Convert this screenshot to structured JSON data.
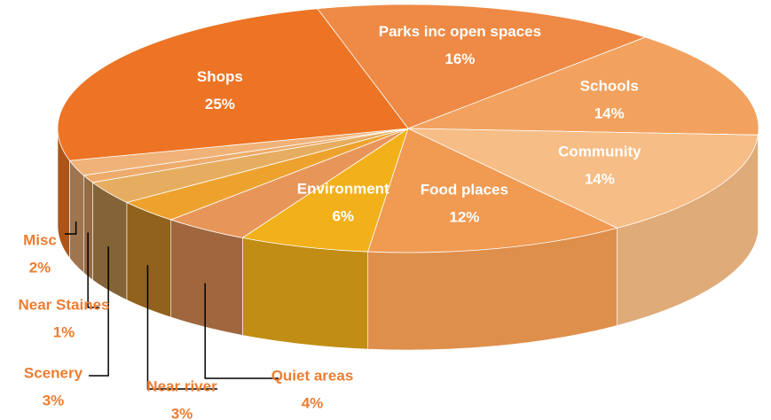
{
  "chart_data": {
    "type": "pie3d",
    "categories": [
      "Parks inc open spaces",
      "Schools",
      "Community",
      "Food places",
      "Environment",
      "Quiet areas",
      "Near river",
      "Scenery",
      "Near Staines",
      "Misc",
      "Shops"
    ],
    "values": [
      16,
      14,
      14,
      12,
      6,
      4,
      3,
      3,
      1,
      2,
      25
    ],
    "value_labels": [
      "16%",
      "14%",
      "14%",
      "12%",
      "6%",
      "4%",
      "3%",
      "3%",
      "1%",
      "2%",
      "25%"
    ],
    "colors": [
      "#ee8a45",
      "#f2a25e",
      "#f6bd86",
      "#f09a52",
      "#f2b11a",
      "#e8955a",
      "#eea22e",
      "#e6ad60",
      "#eeac6c",
      "#f0b278",
      "#ec7424"
    ]
  }
}
